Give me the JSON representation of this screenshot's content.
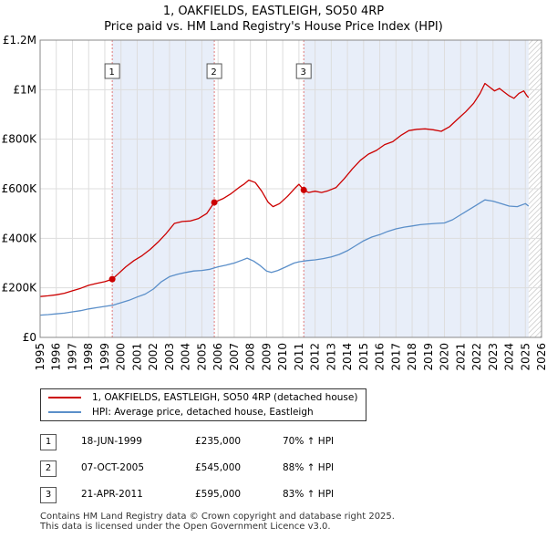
{
  "chart_data": {
    "type": "line",
    "title": "1, OAKFIELDS, EASTLEIGH, SO50 4RP",
    "subtitle": "Price paid vs. HM Land Registry's House Price Index (HPI)",
    "xlim": [
      1995,
      2026
    ],
    "ylim": [
      0,
      1200000
    ],
    "x_ticks": [
      "1995",
      "1996",
      "1997",
      "1998",
      "1999",
      "2000",
      "2001",
      "2002",
      "2003",
      "2004",
      "2005",
      "2006",
      "2007",
      "2008",
      "2009",
      "2010",
      "2011",
      "2012",
      "2013",
      "2014",
      "2015",
      "2016",
      "2017",
      "2018",
      "2019",
      "2020",
      "2021",
      "2022",
      "2023",
      "2024",
      "2025",
      "2026"
    ],
    "y_ticks": [
      {
        "value": 0,
        "label": "£0"
      },
      {
        "value": 200000,
        "label": "£200K"
      },
      {
        "value": 400000,
        "label": "£400K"
      },
      {
        "value": 600000,
        "label": "£600K"
      },
      {
        "value": 800000,
        "label": "£800K"
      },
      {
        "value": 1000000,
        "label": "£1M"
      },
      {
        "value": 1200000,
        "label": "£1.2M"
      }
    ],
    "shaded_periods": [
      {
        "from": 1999.46,
        "to": 2005.77
      },
      {
        "from": 2011.3,
        "to": 2025.2
      }
    ],
    "hatched_from": 2025.2,
    "series": [
      {
        "name": "1, OAKFIELDS, EASTLEIGH, SO50 4RP (detached house)",
        "color": "#cc0000",
        "x": [
          1995.0,
          1995.5,
          1996.0,
          1996.5,
          1997.0,
          1997.5,
          1998.0,
          1998.5,
          1999.0,
          1999.46,
          1999.8,
          2000.3,
          2000.8,
          2001.3,
          2001.8,
          2002.3,
          2002.8,
          2003.3,
          2003.8,
          2004.3,
          2004.8,
          2005.3,
          2005.77,
          2006.3,
          2006.8,
          2007.3,
          2007.6,
          2007.9,
          2008.3,
          2008.7,
          2009.1,
          2009.4,
          2009.8,
          2010.3,
          2010.8,
          2011.0,
          2011.3,
          2011.6,
          2012.0,
          2012.4,
          2012.8,
          2013.3,
          2013.8,
          2014.3,
          2014.8,
          2015.3,
          2015.8,
          2016.3,
          2016.8,
          2017.3,
          2017.8,
          2018.3,
          2018.8,
          2019.3,
          2019.8,
          2020.3,
          2020.8,
          2021.3,
          2021.8,
          2022.2,
          2022.5,
          2022.8,
          2023.1,
          2023.4,
          2023.7,
          2024.0,
          2024.3,
          2024.6,
          2024.9,
          2025.1,
          2025.2
        ],
        "y": [
          165000,
          168000,
          172000,
          178000,
          188000,
          198000,
          210000,
          218000,
          225000,
          235000,
          255000,
          285000,
          310000,
          330000,
          355000,
          385000,
          420000,
          460000,
          468000,
          470000,
          480000,
          500000,
          545000,
          560000,
          580000,
          605000,
          618000,
          635000,
          625000,
          590000,
          545000,
          528000,
          540000,
          570000,
          605000,
          618000,
          595000,
          585000,
          590000,
          585000,
          592000,
          605000,
          640000,
          680000,
          715000,
          740000,
          755000,
          778000,
          790000,
          815000,
          835000,
          840000,
          842000,
          838000,
          832000,
          850000,
          880000,
          910000,
          945000,
          985000,
          1025000,
          1010000,
          995000,
          1005000,
          990000,
          975000,
          965000,
          985000,
          995000,
          975000,
          968000
        ]
      },
      {
        "name": "HPI: Average price, detached house, Eastleigh",
        "color": "#5b8fc9",
        "x": [
          1995.0,
          1995.5,
          1996.0,
          1996.5,
          1997.0,
          1997.5,
          1998.0,
          1998.5,
          1999.0,
          1999.5,
          2000.0,
          2000.5,
          2001.0,
          2001.5,
          2002.0,
          2002.5,
          2003.0,
          2003.5,
          2004.0,
          2004.5,
          2005.0,
          2005.5,
          2006.0,
          2006.5,
          2007.0,
          2007.5,
          2007.8,
          2008.2,
          2008.6,
          2009.0,
          2009.3,
          2009.7,
          2010.2,
          2010.7,
          2011.0,
          2011.5,
          2012.0,
          2012.5,
          2013.0,
          2013.5,
          2014.0,
          2014.5,
          2015.0,
          2015.5,
          2016.0,
          2016.5,
          2017.0,
          2017.5,
          2018.0,
          2018.5,
          2019.0,
          2019.5,
          2020.0,
          2020.5,
          2021.0,
          2021.5,
          2022.0,
          2022.5,
          2023.0,
          2023.5,
          2024.0,
          2024.5,
          2025.0,
          2025.2
        ],
        "y": [
          90000,
          92000,
          95000,
          98000,
          103000,
          108000,
          115000,
          120000,
          125000,
          130000,
          140000,
          150000,
          163000,
          175000,
          195000,
          225000,
          245000,
          255000,
          262000,
          268000,
          270000,
          275000,
          285000,
          292000,
          300000,
          312000,
          320000,
          308000,
          290000,
          268000,
          262000,
          270000,
          285000,
          300000,
          305000,
          310000,
          313000,
          318000,
          325000,
          335000,
          350000,
          370000,
          390000,
          405000,
          415000,
          428000,
          438000,
          445000,
          450000,
          455000,
          458000,
          460000,
          462000,
          475000,
          495000,
          515000,
          535000,
          555000,
          550000,
          540000,
          530000,
          528000,
          540000,
          530000
        ]
      }
    ],
    "sales": [
      {
        "num": "1",
        "x": 1999.46,
        "price": 235000,
        "date": "18-JUN-1999",
        "price_label": "£235,000",
        "hpi": "70% ↑ HPI"
      },
      {
        "num": "2",
        "x": 2005.77,
        "price": 545000,
        "date": "07-OCT-2005",
        "price_label": "£545,000",
        "hpi": "88% ↑ HPI"
      },
      {
        "num": "3",
        "x": 2011.3,
        "price": 595000,
        "date": "21-APR-2011",
        "price_label": "£595,000",
        "hpi": "83% ↑ HPI"
      }
    ]
  },
  "legend": {
    "property_label": "1, OAKFIELDS, EASTLEIGH, SO50 4RP (detached house)",
    "hpi_label": "HPI: Average price, detached house, Eastleigh"
  },
  "footer": {
    "line1": "Contains HM Land Registry data © Crown copyright and database right 2025.",
    "line2": "This data is licensed under the Open Government Licence v3.0."
  },
  "colors": {
    "property": "#cc0000",
    "hpi": "#5b8fc9",
    "shade": "#e8eef9",
    "grid": "#dddddd"
  }
}
